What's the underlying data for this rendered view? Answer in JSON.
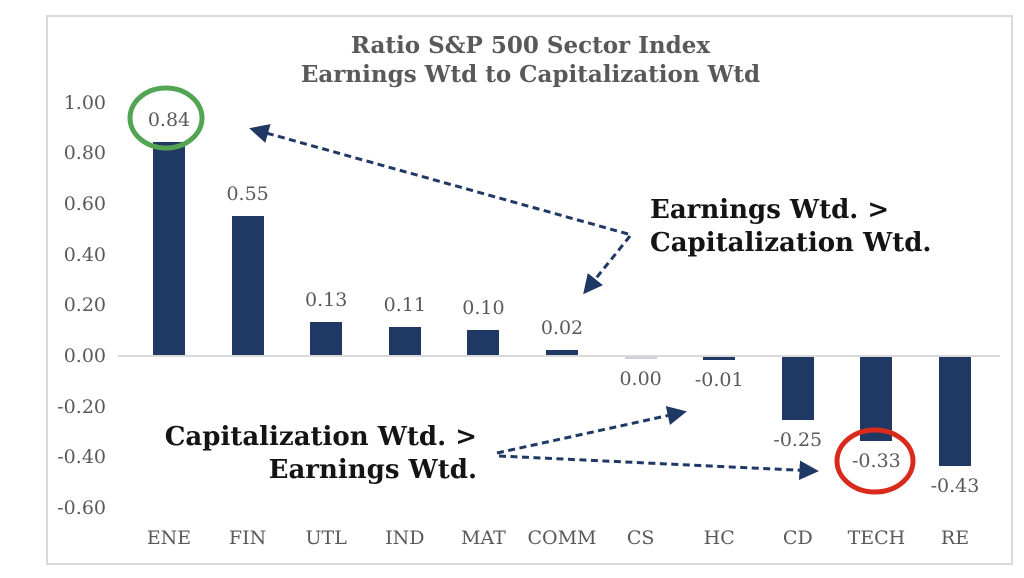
{
  "title": {
    "line1": "Ratio S&P 500 Sector Index",
    "line2": "Earnings Wtd to Capitalization Wtd"
  },
  "annotations": {
    "earnings_gt": {
      "line1": "Earnings Wtd. >",
      "line2": "Capitalization Wtd."
    },
    "cap_gt": {
      "line1": "Capitalization Wtd. >",
      "line2": "Earnings Wtd."
    }
  },
  "chart_data": {
    "type": "bar",
    "title": "Ratio S&P 500 Sector Index Earnings Wtd to Capitalization Wtd",
    "categories": [
      "ENE",
      "FIN",
      "UTL",
      "IND",
      "MAT",
      "COMM",
      "CS",
      "HC",
      "CD",
      "TECH",
      "RE"
    ],
    "values": [
      0.84,
      0.55,
      0.13,
      0.11,
      0.1,
      0.02,
      0.0,
      -0.01,
      -0.25,
      -0.33,
      -0.43
    ],
    "data_labels": [
      "0.84",
      "0.55",
      "0.13",
      "0.11",
      "0.10",
      "0.02",
      "0.00",
      "-0.01",
      "-0.25",
      "-0.33",
      "-0.43"
    ],
    "yticks": [
      "1.00",
      "0.80",
      "0.60",
      "0.40",
      "0.20",
      "0.00",
      "-0.20",
      "-0.40",
      "-0.60"
    ],
    "ylim": [
      -0.6,
      1.0
    ],
    "grid": false,
    "legend": "none",
    "highlights": [
      {
        "category": "ENE",
        "shape": "ellipse",
        "color": "#53a453"
      },
      {
        "category": "TECH",
        "shape": "ellipse",
        "color": "#d92b1b"
      }
    ]
  },
  "colors": {
    "bar": "#1f3864",
    "zero_bar": "#c9cede",
    "axis": "#d9d9d9",
    "border": "#d9d9d9",
    "text_gray": "#595959",
    "annotation_text": "#141414",
    "arrow": "#1f3864",
    "green_circle": "#53a453",
    "red_circle": "#d92b1b"
  }
}
